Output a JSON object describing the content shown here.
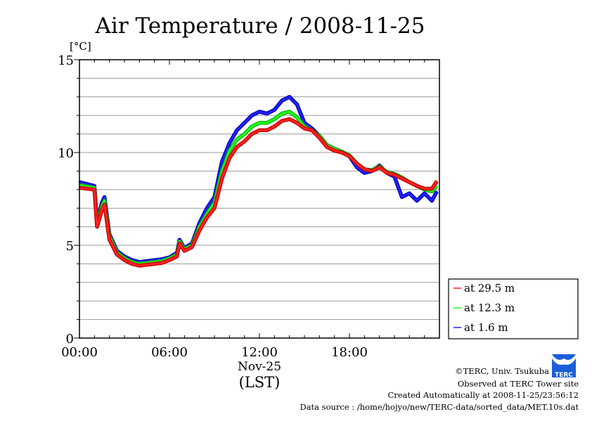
{
  "chart_data": {
    "type": "line",
    "title": "Air Temperature / 2008-11-25",
    "ylabel": "[°C]",
    "xlabel": "(LST)",
    "date_label": "Nov-25",
    "ylim": [
      0,
      15
    ],
    "xlim_hours": [
      0,
      24
    ],
    "yticks": [
      "0",
      "5",
      "10",
      "15"
    ],
    "ytick_values": [
      0,
      5,
      10,
      15
    ],
    "xticks": [
      "00:00",
      "06:00",
      "12:00",
      "18:00"
    ],
    "xtick_values": [
      0,
      6,
      12,
      18
    ],
    "grid": "horizontal every 1 °C",
    "legend_position": "right-bottom",
    "x_hours": [
      0,
      1,
      1.17,
      1.5,
      1.67,
      2,
      2.5,
      3,
      3.5,
      4,
      5,
      5.5,
      6,
      6.5,
      6.67,
      7,
      7.5,
      8,
      8.5,
      9,
      9.5,
      10,
      10.5,
      11,
      11.5,
      12,
      12.5,
      13,
      13.5,
      14,
      14.5,
      15,
      15.5,
      16,
      16.5,
      17,
      17.5,
      18,
      18.5,
      19,
      19.5,
      20,
      20.5,
      21,
      21.5,
      22,
      22.5,
      23,
      23.5,
      23.83
    ],
    "series": [
      {
        "name": "at 29.5 m",
        "color": "#ff2020",
        "values": [
          8.1,
          8.0,
          6.0,
          6.9,
          7.2,
          5.3,
          4.5,
          4.2,
          4.0,
          3.9,
          4.0,
          4.05,
          4.2,
          4.4,
          5.1,
          4.7,
          4.9,
          5.8,
          6.5,
          7.0,
          8.6,
          9.7,
          10.3,
          10.6,
          11.0,
          11.2,
          11.2,
          11.4,
          11.7,
          11.8,
          11.6,
          11.3,
          11.2,
          10.8,
          10.3,
          10.1,
          10.0,
          9.8,
          9.4,
          9.1,
          9.0,
          9.2,
          8.9,
          8.8,
          8.6,
          8.4,
          8.2,
          8.05,
          8.05,
          8.45
        ]
      },
      {
        "name": "at 12.3 m",
        "color": "#20ff20",
        "values": [
          8.25,
          8.1,
          6.2,
          7.1,
          7.4,
          5.5,
          4.6,
          4.3,
          4.1,
          4.0,
          4.1,
          4.15,
          4.3,
          4.5,
          5.2,
          4.8,
          5.0,
          6.0,
          6.7,
          7.3,
          9.0,
          10.1,
          10.7,
          11.0,
          11.4,
          11.6,
          11.6,
          11.8,
          12.1,
          12.2,
          11.9,
          11.4,
          11.2,
          10.9,
          10.4,
          10.2,
          10.05,
          9.85,
          9.4,
          9.1,
          9.05,
          9.25,
          8.95,
          8.85,
          8.65,
          8.4,
          8.2,
          8.0,
          7.9,
          8.2
        ]
      },
      {
        "name": "at 1.6 m",
        "color": "#2020ff",
        "values": [
          8.4,
          8.2,
          6.3,
          7.3,
          7.6,
          5.6,
          4.7,
          4.4,
          4.2,
          4.1,
          4.2,
          4.25,
          4.35,
          4.6,
          5.3,
          4.85,
          5.1,
          6.2,
          7.0,
          7.6,
          9.5,
          10.5,
          11.2,
          11.6,
          12.0,
          12.2,
          12.1,
          12.3,
          12.8,
          13.0,
          12.6,
          11.6,
          11.3,
          10.9,
          10.4,
          10.2,
          10.05,
          9.8,
          9.2,
          8.9,
          9.0,
          9.3,
          8.9,
          8.7,
          7.6,
          7.8,
          7.4,
          7.8,
          7.4,
          7.9
        ]
      }
    ]
  },
  "footer": {
    "copyright": "©TERC, Univ. Tsukuba",
    "observed": "Observed at TERC Tower site",
    "created": "Created Automatically at 2008-11-25/23:56:12",
    "source": "Data source : /home/hojyo/new/TERC-data/sorted_data/MET.10s.dat",
    "logo_text": "TERC"
  }
}
